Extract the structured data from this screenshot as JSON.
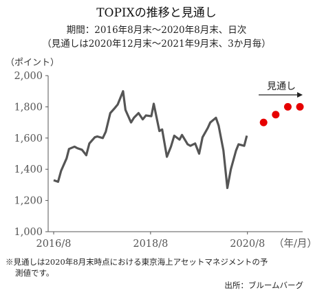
{
  "title": "TOPIXの推移と見通し",
  "subtitle_period": "期間：2016年8月末～2020年8月末、日次",
  "subtitle_forecast": "（見通しは2020年12月末～2021年9月末、3か月毎）",
  "note_line1": "※見通しは2020年8月末時点における東京海上アセットマネジメントの予",
  "note_line2": "測値です。",
  "source": "出所：ブルームバーグ",
  "chart_data": {
    "type": "line",
    "title": "TOPIXの推移と見通し",
    "ylabel": "（ポイント）",
    "xlabel": "（年/月）",
    "ylim": [
      1000,
      2000
    ],
    "yticks": [
      1000,
      1200,
      1400,
      1600,
      1800,
      2000
    ],
    "ytick_labels": [
      "1,000",
      "1,200",
      "1,400",
      "1,600",
      "1,800",
      "2,000"
    ],
    "xticks": [
      "2016/8",
      "2018/8",
      "2020/8"
    ],
    "x_axis_unit": "（年/月）",
    "forecast_label": "見通し",
    "colors": {
      "actual": "#555555",
      "forecast": "#e60000",
      "axis": "#555555",
      "arrow": "#222222"
    },
    "series": [
      {
        "name": "",
        "kind": "actual",
        "x": [
          "2016/08",
          "2016/09",
          "2016/10",
          "2016/11",
          "2016/12",
          "2017/01",
          "2017/02",
          "2017/03",
          "2017/04",
          "2017/05",
          "2017/06",
          "2017/07",
          "2017/08",
          "2017/09",
          "2017/10",
          "2017/11",
          "2017/12",
          "2018/01",
          "2018/02",
          "2018/03",
          "2018/04",
          "2018/05",
          "2018/06",
          "2018/07",
          "2018/08",
          "2018/09",
          "2018/10",
          "2018/11",
          "2018/12",
          "2019/01",
          "2019/02",
          "2019/03",
          "2019/04",
          "2019/05",
          "2019/06",
          "2019/07",
          "2019/08",
          "2019/09",
          "2019/10",
          "2019/11",
          "2019/12",
          "2020/01",
          "2020/02",
          "2020/03",
          "2020/04",
          "2020/05",
          "2020/06",
          "2020/07",
          "2020/08"
        ],
        "values": [
          1330,
          1320,
          1390,
          1470,
          1530,
          1545,
          1535,
          1525,
          1490,
          1565,
          1605,
          1610,
          1600,
          1640,
          1760,
          1790,
          1815,
          1900,
          1780,
          1700,
          1730,
          1760,
          1720,
          1745,
          1740,
          1820,
          1645,
          1655,
          1480,
          1545,
          1615,
          1590,
          1620,
          1560,
          1550,
          1565,
          1500,
          1605,
          1665,
          1700,
          1730,
          1680,
          1520,
          1280,
          1400,
          1520,
          1560,
          1550,
          1615
        ]
      },
      {
        "name": "",
        "kind": "forecast",
        "x": [
          "2020/12",
          "2021/03",
          "2021/06",
          "2021/09"
        ],
        "values": [
          1700,
          1750,
          1800,
          1800
        ]
      }
    ],
    "legend": "none",
    "grid": false
  }
}
